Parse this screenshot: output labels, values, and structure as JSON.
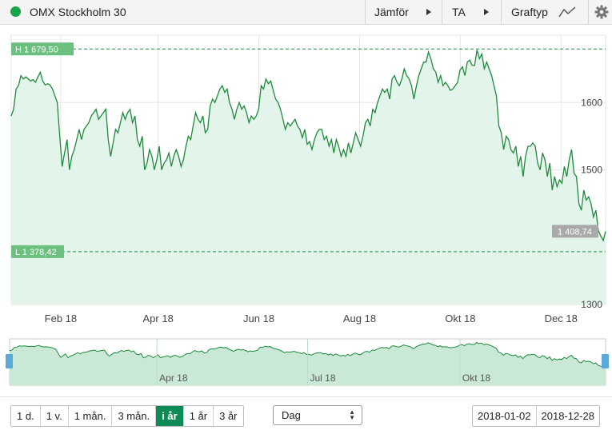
{
  "header": {
    "title": "OMX Stockholm 30",
    "compare_label": "Jämför",
    "ta_label": "TA",
    "charttype_label": "Graftyp"
  },
  "colors": {
    "line": "#1e8a3c",
    "fill": "#e3f4ea",
    "nav_fill": "#c9e9d6",
    "badge": "#6cc07f",
    "handle": "#5aa9d8",
    "active": "#0e8a57",
    "dot": "#17a34a"
  },
  "chart_data": {
    "type": "line",
    "title": "OMX Stockholm 30",
    "x_range": [
      "2018-01-02",
      "2018-12-28"
    ],
    "x_tick_labels": [
      "Feb 18",
      "Apr 18",
      "Jun 18",
      "Aug 18",
      "Okt 18",
      "Dec 18"
    ],
    "y_tick_labels": [
      "1600",
      "1500",
      "1300"
    ],
    "ylim": [
      1300,
      1700
    ],
    "grid": true,
    "high_label": "H 1 679,50",
    "low_label": "L 1 378,42",
    "high": 1679.5,
    "low": 1378.42,
    "last_label": "1 408,74",
    "last": 1408.74,
    "series": [
      {
        "values": [
          1580,
          1590,
          1620,
          1625,
          1640,
          1635,
          1638,
          1635,
          1632,
          1634,
          1630,
          1638,
          1645,
          1632,
          1626,
          1628,
          1626,
          1620,
          1610,
          1600,
          1550,
          1505,
          1525,
          1545,
          1500,
          1520,
          1530,
          1545,
          1560,
          1545,
          1560,
          1565,
          1570,
          1580,
          1585,
          1590,
          1575,
          1580,
          1585,
          1590,
          1545,
          1520,
          1540,
          1560,
          1555,
          1570,
          1585,
          1575,
          1585,
          1590,
          1570,
          1580,
          1545,
          1535,
          1550,
          1500,
          1510,
          1530,
          1520,
          1500,
          1515,
          1535,
          1500,
          1510,
          1515,
          1525,
          1505,
          1520,
          1530,
          1520,
          1505,
          1515,
          1535,
          1550,
          1545,
          1565,
          1585,
          1575,
          1570,
          1580,
          1555,
          1560,
          1595,
          1605,
          1600,
          1610,
          1620,
          1625,
          1615,
          1620,
          1600,
          1590,
          1575,
          1590,
          1600,
          1590,
          1595,
          1585,
          1570,
          1580,
          1575,
          1580,
          1590,
          1625,
          1620,
          1635,
          1628,
          1632,
          1618,
          1605,
          1600,
          1590,
          1575,
          1560,
          1570,
          1565,
          1570,
          1575,
          1565,
          1560,
          1548,
          1560,
          1538,
          1542,
          1530,
          1545,
          1555,
          1560,
          1560,
          1545,
          1550,
          1535,
          1545,
          1525,
          1545,
          1535,
          1520,
          1530,
          1520,
          1540,
          1525,
          1540,
          1555,
          1545,
          1535,
          1550,
          1570,
          1575,
          1565,
          1590,
          1585,
          1600,
          1610,
          1620,
          1615,
          1620,
          1605,
          1635,
          1640,
          1630,
          1625,
          1635,
          1650,
          1640,
          1635,
          1625,
          1605,
          1625,
          1640,
          1650,
          1660,
          1660,
          1675,
          1665,
          1650,
          1645,
          1630,
          1640,
          1625,
          1630,
          1625,
          1618,
          1620,
          1625,
          1630,
          1648,
          1653,
          1640,
          1660,
          1663,
          1655,
          1655,
          1678,
          1665,
          1672,
          1650,
          1660,
          1650,
          1640,
          1625,
          1610,
          1565,
          1555,
          1530,
          1550,
          1545,
          1530,
          1525,
          1535,
          1505,
          1520,
          1490,
          1520,
          1535,
          1535,
          1540,
          1535,
          1510,
          1500,
          1525,
          1515,
          1490,
          1510,
          1470,
          1490,
          1475,
          1485,
          1480,
          1505,
          1490,
          1515,
          1530,
          1495,
          1490,
          1450,
          1440,
          1470,
          1455,
          1460,
          1450,
          1430,
          1440,
          1410,
          1402,
          1395,
          1408.74
        ]
      }
    ]
  },
  "navigator": {
    "tick_labels": [
      "Apr 18",
      "Jul 18",
      "Okt 18"
    ]
  },
  "controls": {
    "ranges": [
      {
        "label": "1 d.",
        "active": false
      },
      {
        "label": "1 v.",
        "active": false
      },
      {
        "label": "1 mån.",
        "active": false
      },
      {
        "label": "3 mån.",
        "active": false
      },
      {
        "label": "i år",
        "active": true
      },
      {
        "label": "1 år",
        "active": false
      },
      {
        "label": "3 år",
        "active": false
      }
    ],
    "interval_selected": "Dag",
    "date_from": "2018-01-02",
    "date_to": "2018-12-28"
  }
}
